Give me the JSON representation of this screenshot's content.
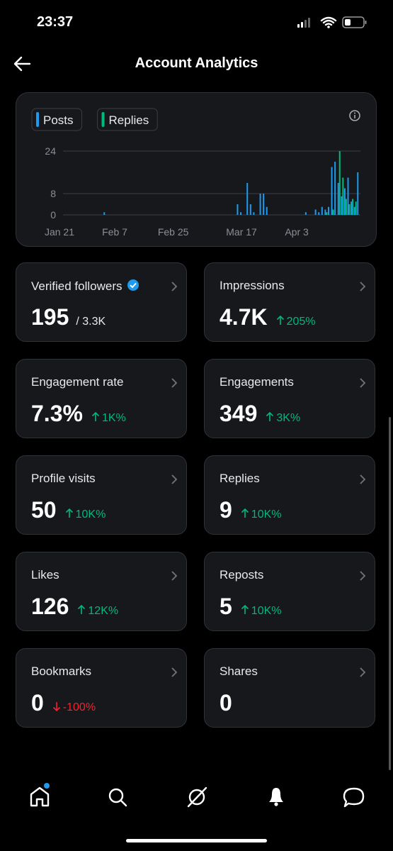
{
  "status_bar": {
    "time": "23:37"
  },
  "header": {
    "title": "Account Analytics"
  },
  "chart_data": {
    "type": "bar",
    "categories": [
      "Jan 21",
      null,
      null,
      null,
      null,
      null,
      null,
      null,
      null,
      null,
      null,
      null,
      null,
      null,
      null,
      null,
      null,
      "Feb 7",
      null,
      null,
      null,
      null,
      null,
      null,
      null,
      null,
      null,
      null,
      null,
      null,
      null,
      null,
      null,
      null,
      null,
      "Feb 25",
      null,
      null,
      null,
      null,
      null,
      null,
      null,
      null,
      null,
      null,
      null,
      null,
      null,
      null,
      null,
      null,
      null,
      null,
      null,
      null,
      "Mar 17",
      null,
      null,
      null,
      null,
      null,
      null,
      null,
      null,
      null,
      null,
      null,
      null,
      null,
      null,
      null,
      null,
      "Apr 3",
      null,
      null,
      null,
      null,
      null,
      null,
      null,
      null,
      null,
      null,
      null,
      null,
      null,
      null,
      null,
      null,
      null,
      null,
      null
    ],
    "series": [
      {
        "name": "Posts",
        "color": "#1d9bf0",
        "values": [
          0,
          0,
          0,
          0,
          0,
          0,
          0,
          0,
          0,
          0,
          0,
          0,
          0,
          0,
          1,
          0,
          0,
          0,
          0,
          0,
          0,
          0,
          0,
          0,
          0,
          0,
          0,
          0,
          0,
          0,
          0,
          0,
          0,
          0,
          0,
          0,
          0,
          0,
          0,
          0,
          0,
          0,
          0,
          0,
          0,
          0,
          0,
          0,
          0,
          0,
          0,
          0,
          0,
          0,
          0,
          4,
          1,
          0,
          12,
          4,
          1,
          0,
          8,
          8,
          3,
          0,
          0,
          0,
          0,
          0,
          0,
          0,
          0,
          0,
          0,
          0,
          1,
          0,
          0,
          2,
          1,
          3,
          2,
          3,
          18,
          20,
          12,
          7,
          10,
          14,
          5,
          3,
          16
        ]
      },
      {
        "name": "Replies",
        "color": "#00ba7c",
        "values": [
          0,
          0,
          0,
          0,
          0,
          0,
          0,
          0,
          0,
          0,
          0,
          0,
          0,
          0,
          0,
          0,
          0,
          0,
          0,
          0,
          0,
          0,
          0,
          0,
          0,
          0,
          0,
          0,
          0,
          0,
          0,
          0,
          0,
          0,
          0,
          0,
          0,
          0,
          0,
          0,
          0,
          0,
          0,
          0,
          0,
          0,
          0,
          0,
          0,
          0,
          0,
          0,
          0,
          0,
          0,
          0,
          0,
          0,
          0,
          0,
          0,
          0,
          0,
          0,
          0,
          0,
          0,
          0,
          0,
          0,
          0,
          0,
          0,
          0,
          0,
          0,
          0,
          0,
          0,
          0,
          0,
          0,
          1,
          0,
          2,
          0,
          24,
          14,
          6,
          4,
          6,
          5,
          0
        ]
      }
    ],
    "ylim": [
      0,
      24
    ],
    "yticks": [
      0,
      8,
      24
    ],
    "grid": true
  },
  "cards": [
    {
      "title": "Verified followers",
      "value": "195",
      "secondary": "/ 3.3K",
      "verified": true
    },
    {
      "title": "Impressions",
      "value": "4.7K",
      "change": "205%",
      "trend": "up"
    },
    {
      "title": "Engagement rate",
      "value": "7.3%",
      "change": "1K%",
      "trend": "up"
    },
    {
      "title": "Engagements",
      "value": "349",
      "change": "3K%",
      "trend": "up"
    },
    {
      "title": "Profile visits",
      "value": "50",
      "change": "10K%",
      "trend": "up"
    },
    {
      "title": "Replies",
      "value": "9",
      "change": "10K%",
      "trend": "up"
    },
    {
      "title": "Likes",
      "value": "126",
      "change": "12K%",
      "trend": "up"
    },
    {
      "title": "Reposts",
      "value": "5",
      "change": "10K%",
      "trend": "up"
    },
    {
      "title": "Bookmarks",
      "value": "0",
      "change": "-100%",
      "trend": "down"
    },
    {
      "title": "Shares",
      "value": "0"
    }
  ]
}
